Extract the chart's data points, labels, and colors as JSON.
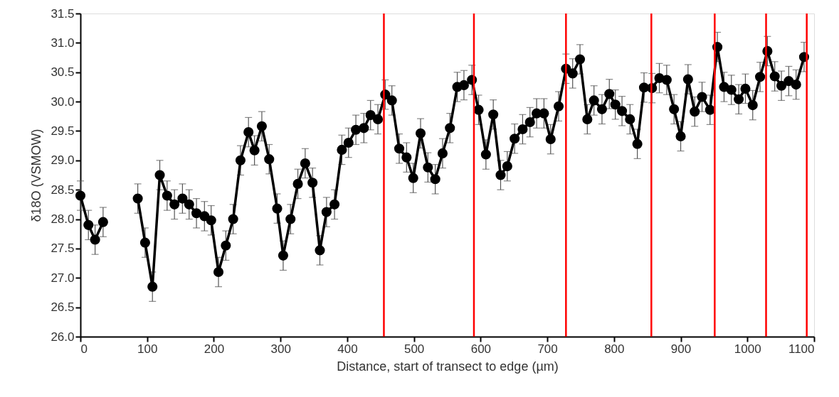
{
  "chart_data": {
    "type": "line",
    "xlabel": "Distance, start of transect to edge (µm)",
    "ylabel": "δ18O (VSMOW)",
    "x": [
      0,
      12,
      22,
      34,
      60,
      86,
      97,
      108,
      119,
      130,
      141,
      153,
      163,
      174,
      186,
      196,
      207,
      218,
      229,
      240,
      252,
      261,
      272,
      283,
      295,
      304,
      315,
      326,
      337,
      348,
      359,
      369,
      381,
      392,
      402,
      413,
      425,
      435,
      446,
      457,
      467,
      478,
      489,
      499,
      510,
      521,
      532,
      543,
      554,
      565,
      575,
      587,
      597,
      608,
      619,
      630,
      640,
      651,
      663,
      674,
      684,
      695,
      705,
      717,
      728,
      738,
      749,
      760,
      770,
      782,
      793,
      802,
      812,
      824,
      835,
      845,
      857,
      868,
      879,
      890,
      900,
      911,
      921,
      932,
      944,
      955,
      965,
      976,
      987,
      997,
      1008,
      1019,
      1030,
      1041,
      1051,
      1062,
      1073,
      1085
    ],
    "series": [
      {
        "color": "#000000",
        "values": [
          28.4,
          27.9,
          27.65,
          27.95,
          null,
          28.35,
          27.6,
          26.85,
          28.75,
          28.4,
          28.25,
          28.35,
          28.25,
          28.1,
          28.05,
          27.98,
          27.1,
          27.55,
          28.0,
          29.0,
          29.48,
          29.17,
          29.58,
          29.02,
          28.18,
          27.38,
          28.0,
          28.6,
          28.95,
          28.62,
          27.47,
          28.12,
          28.25,
          29.18,
          29.3,
          29.52,
          29.55,
          29.77,
          29.7,
          30.12,
          30.02,
          29.2,
          29.05,
          28.7,
          29.46,
          28.88,
          28.68,
          29.12,
          29.55,
          30.25,
          30.28,
          30.37,
          29.86,
          29.1,
          29.78,
          28.75,
          28.9,
          29.37,
          29.53,
          29.65,
          29.8,
          29.8,
          29.36,
          29.92,
          30.56,
          30.48,
          30.72,
          29.7,
          30.02,
          29.87,
          30.13,
          29.95,
          29.84,
          29.7,
          29.28,
          30.24,
          30.23,
          30.4,
          30.37,
          29.87,
          29.41,
          30.38,
          29.83,
          30.08,
          29.86,
          30.93,
          30.25,
          30.2,
          30.04,
          30.22,
          29.94,
          30.42,
          30.86,
          30.43,
          30.27,
          30.35,
          30.29,
          30.76
        ],
        "errors": [
          0.25,
          0.25,
          0.25,
          0.25,
          null,
          0.25,
          0.25,
          0.25,
          0.25,
          0.25,
          0.25,
          0.25,
          0.25,
          0.25,
          0.25,
          0.25,
          0.25,
          0.25,
          0.25,
          0.25,
          0.25,
          0.25,
          0.25,
          0.25,
          0.25,
          0.25,
          0.25,
          0.25,
          0.25,
          0.25,
          0.25,
          0.25,
          0.25,
          0.25,
          0.25,
          0.25,
          0.25,
          0.25,
          0.25,
          0.25,
          0.25,
          0.25,
          0.25,
          0.25,
          0.25,
          0.25,
          0.25,
          0.25,
          0.25,
          0.25,
          0.25,
          0.25,
          0.25,
          0.25,
          0.25,
          0.25,
          0.25,
          0.25,
          0.25,
          0.25,
          0.25,
          0.25,
          0.25,
          0.25,
          0.25,
          0.25,
          0.25,
          0.25,
          0.25,
          0.25,
          0.25,
          0.25,
          0.25,
          0.25,
          0.25,
          0.25,
          0.25,
          0.25,
          0.25,
          0.25,
          0.25,
          0.25,
          0.25,
          0.25,
          0.25,
          0.25,
          0.25,
          0.25,
          0.25,
          0.25,
          0.25,
          0.25,
          0.25,
          0.25,
          0.25,
          0.25,
          0.25,
          0.25
        ]
      }
    ],
    "marker": "circle",
    "line_style": "solid",
    "grid": false,
    "xlim": [
      0,
      1100
    ],
    "xticks": [
      0,
      100,
      200,
      300,
      400,
      500,
      600,
      700,
      800,
      900,
      1000,
      1100
    ],
    "ylim": [
      26.0,
      31.5
    ],
    "yticks": [
      {
        "value": 26,
        "label": "26.0"
      },
      26.5,
      {
        "value": 27,
        "label": "27.0"
      },
      27.5,
      {
        "value": 28,
        "label": "28.0"
      },
      28.5,
      {
        "value": 29,
        "label": "29.0"
      },
      29.5,
      {
        "value": 30,
        "label": "30.0"
      },
      30.5,
      {
        "value": 31,
        "label": "31.0"
      },
      31.5
    ],
    "ref_lines": [
      {
        "axis": "x",
        "value": 455,
        "color": "#ff0000"
      },
      {
        "axis": "x",
        "value": 590,
        "color": "#ff0000"
      },
      {
        "axis": "x",
        "value": 728,
        "color": "#ff0000"
      },
      {
        "axis": "x",
        "value": 856,
        "color": "#ff0000"
      },
      {
        "axis": "x",
        "value": 951,
        "color": "#ff0000"
      },
      {
        "axis": "x",
        "value": 1028,
        "color": "#ff0000"
      },
      {
        "axis": "x",
        "value": 1089,
        "color": "#ff0000"
      }
    ]
  }
}
